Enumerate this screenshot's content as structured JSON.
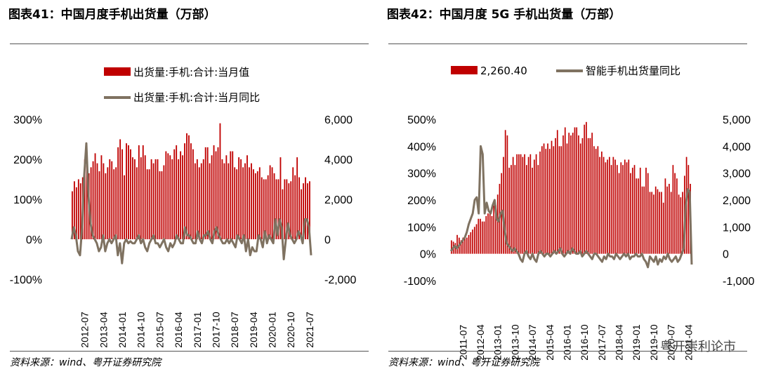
{
  "charts": [
    {
      "title": "图表41：中国月度手机出货量（万部）",
      "source": "资料来源：wind、粤开证券研究院"
    },
    {
      "title": "图表42：中国月度 5G 手机出货量（万部）",
      "source": "资料来源：wind、粤开证券研究院"
    }
  ],
  "watermark": "粤开崇利论市",
  "colors": {
    "bar": "#c00000",
    "line": "#7f7261"
  },
  "chart_data": [
    {
      "type": "bar",
      "combo": "bar+line",
      "x": {
        "start": "2012-01",
        "end": "2021-07",
        "tick_labels": [
          "2012-07",
          "2013-04",
          "2014-01",
          "2014-10",
          "2015-07",
          "2016-04",
          "2017-01",
          "2017-10",
          "2018-07",
          "2019-04",
          "2020-01",
          "2020-10",
          "2021-07"
        ]
      },
      "y_right": {
        "range": [
          -2000,
          6000
        ],
        "ticks": [
          "-2,000",
          "0",
          "2,000",
          "4,000",
          "6,000"
        ]
      },
      "y_left": {
        "range": [
          -1.0,
          3.0
        ],
        "ticks": [
          "-100%",
          "0%",
          "100%",
          "200%",
          "300%"
        ]
      },
      "legend": [
        "出货量:手机:合计:当月值",
        "出货量:手机:合计:当月同比"
      ],
      "legend_position": "top",
      "grid": false,
      "series": [
        {
          "name": "出货量:手机:合计:当月值",
          "type": "bar",
          "axis": "right",
          "values": [
            2400,
            2900,
            2600,
            3000,
            2800,
            3100,
            4000,
            3700,
            3300,
            3600,
            3900,
            4300,
            3800,
            3400,
            4200,
            3800,
            3300,
            3600,
            4000,
            3900,
            3500,
            3600,
            4600,
            5000,
            4500,
            3200,
            4800,
            4700,
            4500,
            4100,
            4000,
            3600,
            4700,
            4100,
            4700,
            4200,
            3500,
            3500,
            4000,
            3800,
            4000,
            4000,
            3400,
            3400,
            3700,
            4400,
            4300,
            4200,
            4000,
            4500,
            4700,
            4000,
            4400,
            4200,
            4800,
            5300,
            5200,
            4800,
            4500,
            3800,
            4000,
            3600,
            3800,
            4000,
            4600,
            4600,
            3800,
            4200,
            4700,
            4400,
            4600,
            5800,
            4000,
            3800,
            4200,
            3800,
            4400,
            4400,
            3600,
            3500,
            4100,
            4000,
            3600,
            3800,
            4200,
            3600,
            3800,
            3500,
            3300,
            3400,
            3600,
            3100,
            3000,
            3000,
            3200,
            3700,
            3600,
            3300,
            3000,
            3000,
            4100,
            2500,
            3000,
            3000,
            2800,
            2900,
            3600,
            3200,
            4100,
            3100,
            2500,
            2800,
            3100,
            2800,
            2900
          ]
        },
        {
          "name": "出货量:手机:合计:当月同比",
          "type": "line",
          "axis": "left",
          "values": [
            0.0,
            0.3,
            0.1,
            -0.3,
            -0.4,
            0.3,
            1.6,
            2.4,
            1.1,
            0.4,
            0.1,
            0.0,
            -0.1,
            -0.3,
            -0.2,
            0.1,
            -0.3,
            -0.1,
            0.0,
            -0.1,
            0.0,
            0.1,
            -0.4,
            -0.1,
            -0.6,
            -0.1,
            0.0,
            -0.1,
            -0.05,
            -0.1,
            -0.1,
            0.0,
            0.1,
            -0.1,
            0.0,
            -0.2,
            -0.3,
            -0.1,
            0.0,
            0.1,
            -0.1,
            -0.1,
            -0.2,
            -0.1,
            0.0,
            -0.2,
            -0.3,
            -0.1,
            -0.2,
            -0.1,
            0.1,
            0.0,
            -0.1,
            -0.1,
            0.3,
            0.1,
            0.1,
            0.0,
            -0.1,
            -0.1,
            0.2,
            0.0,
            -0.1,
            0.1,
            0.1,
            0.2,
            0.0,
            -0.1,
            0.2,
            0.3,
            0.1,
            0.0,
            -0.1,
            -0.1,
            0.0,
            -0.1,
            0.0,
            -0.1,
            -0.2,
            0.1,
            0.0,
            -0.1,
            0.1,
            -0.3,
            0.0,
            -0.4,
            -0.2,
            -0.3,
            -0.3,
            0.1,
            0.0,
            -0.2,
            0.2,
            -0.1,
            0.1,
            0.0,
            -0.1,
            0.5,
            0.1,
            0.5,
            0.3,
            -0.5,
            0.0,
            0.4,
            0.1,
            0.0,
            -0.1,
            0.0,
            0.2,
            0.1,
            -0.1,
            0.5,
            0.5,
            0.3,
            -0.4
          ]
        }
      ]
    },
    {
      "type": "bar",
      "combo": "bar+line",
      "x": {
        "start": "2011-01",
        "end": "2021-05",
        "tick_labels": [
          "2011-07",
          "2012-04",
          "2013-01",
          "2013-10",
          "2014-07",
          "2015-04",
          "2016-01",
          "2016-10",
          "2017-07",
          "2018-04",
          "2019-01",
          "2019-10",
          "2020-07",
          "2021-04"
        ]
      },
      "y_right": {
        "range": [
          -1000,
          5000
        ],
        "ticks": [
          "-1,000",
          "0",
          "1,000",
          "2,000",
          "3,000",
          "4,000",
          "5,000"
        ]
      },
      "y_left": {
        "range": [
          -1.0,
          5.0
        ],
        "ticks": [
          "-100%",
          "0%",
          "100%",
          "200%",
          "300%",
          "400%",
          "500%"
        ]
      },
      "legend": [
        "2,260.40",
        "智能手机出货量同比"
      ],
      "legend_position": "top",
      "grid": false,
      "series": [
        {
          "name": "2,260.40",
          "type": "bar",
          "axis": "right",
          "values": [
            500,
            450,
            400,
            700,
            600,
            500,
            600,
            650,
            600,
            700,
            800,
            900,
            1000,
            1100,
            1300,
            1300,
            1200,
            1200,
            1400,
            1500,
            1500,
            1400,
            1800,
            1800,
            2200,
            2600,
            3000,
            3600,
            4600,
            4400,
            3200,
            3300,
            3600,
            3300,
            3700,
            3700,
            3700,
            3600,
            3700,
            3300,
            3600,
            3700,
            3200,
            3500,
            3700,
            3300,
            3800,
            4000,
            4100,
            3900,
            4100,
            3900,
            4200,
            4000,
            4300,
            4600,
            4000,
            4000,
            4400,
            4700,
            4100,
            4500,
            4400,
            4500,
            4700,
            4700,
            4400,
            4100,
            4300,
            4800,
            4900,
            4300,
            4300,
            4500,
            4000,
            3900,
            4000,
            3600,
            3800,
            3600,
            3400,
            3500,
            3600,
            3300,
            3600,
            3500,
            3300,
            3000,
            3400,
            3300,
            3500,
            3400,
            3500,
            3000,
            3200,
            3300,
            2800,
            2800,
            3200,
            2500,
            2500,
            3200,
            3000,
            2300,
            2300,
            2200,
            2500,
            2400,
            2300,
            2300,
            1900,
            2800,
            2500,
            2600,
            2300,
            3300,
            3000,
            2800,
            2200,
            2100,
            2300,
            2900,
            3600,
            3300,
            2600
          ]
        },
        {
          "name": "智能手机出货量同比",
          "type": "line",
          "axis": "left",
          "values": [
            0.1,
            0.2,
            0.3,
            0.2,
            0.3,
            0.4,
            0.5,
            0.6,
            0.8,
            1.1,
            1.3,
            1.5,
            2.0,
            2.1,
            1.5,
            4.0,
            3.7,
            1.5,
            1.9,
            1.6,
            1.5,
            1.8,
            2.0,
            1.3,
            1.2,
            1.5,
            1.6,
            0.9,
            0.4,
            0.3,
            0.2,
            0.1,
            0.2,
            0.1,
            0.0,
            -0.2,
            -0.3,
            0.0,
            0.1,
            -0.1,
            -0.2,
            0.0,
            -0.2,
            -0.3,
            0.0,
            0.1,
            0.0,
            -0.1,
            0.0,
            0.0,
            -0.1,
            0.0,
            0.1,
            0.0,
            0.1,
            0.2,
            0.0,
            -0.1,
            0.0,
            0.1,
            0.0,
            0.2,
            0.1,
            0.0,
            0.0,
            0.1,
            -0.1,
            0.0,
            0.1,
            0.0,
            -0.1,
            -0.2,
            0.0,
            0.0,
            -0.1,
            -0.2,
            -0.3,
            -0.1,
            -0.2,
            0.0,
            -0.1,
            -0.1,
            -0.2,
            0.0,
            -0.1,
            -0.2,
            -0.1,
            0.0,
            -0.1,
            0.0,
            -0.2,
            -0.1,
            -0.1,
            0.0,
            -0.1,
            -0.1,
            0.0,
            -0.2,
            -0.3,
            -0.5,
            -0.1,
            -0.2,
            -0.3,
            -0.1,
            -0.4,
            -0.2,
            -0.3,
            -0.1,
            -0.2,
            0.0,
            -0.2,
            -0.3,
            -0.2,
            -0.1,
            -0.3,
            -0.2,
            0.0,
            0.2,
            1.8,
            2.4,
            2.3,
            -0.4
          ]
        }
      ]
    }
  ]
}
